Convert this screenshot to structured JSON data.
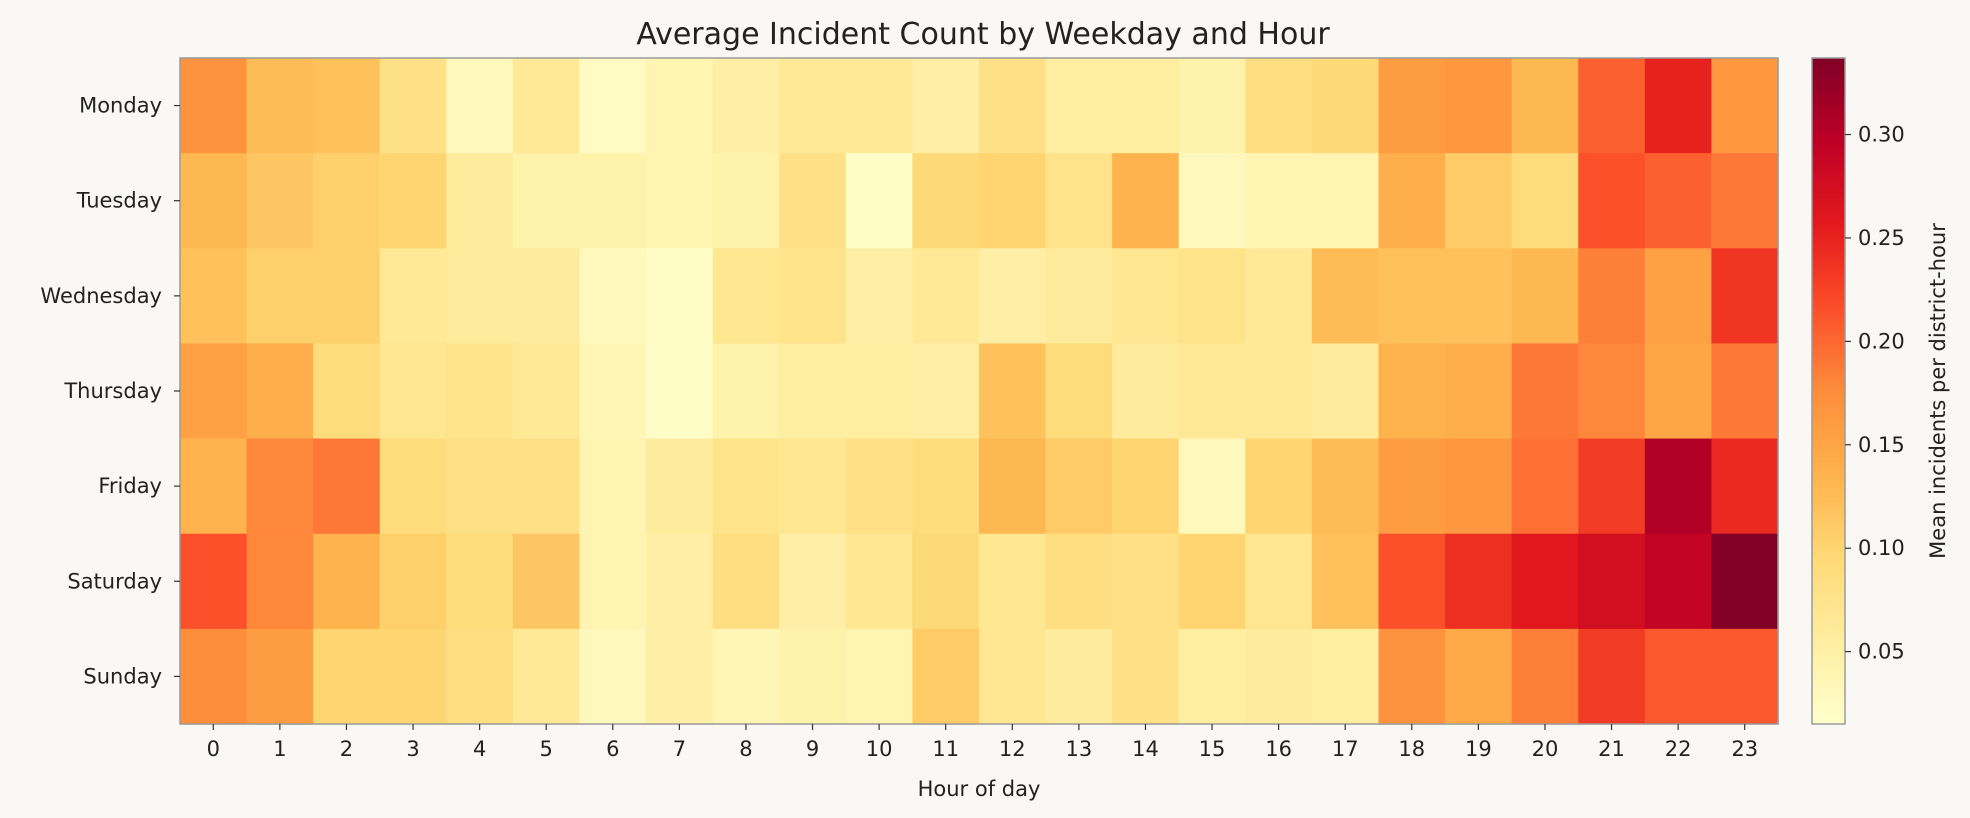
{
  "chart_data": {
    "type": "heatmap",
    "title": "Average Incident Count by Weekday and Hour",
    "xlabel": "Hour of day",
    "ylabel": "",
    "x_categories": [
      "0",
      "1",
      "2",
      "3",
      "4",
      "5",
      "6",
      "7",
      "8",
      "9",
      "10",
      "11",
      "12",
      "13",
      "14",
      "15",
      "16",
      "17",
      "18",
      "19",
      "20",
      "21",
      "22",
      "23"
    ],
    "y_categories": [
      "Monday",
      "Tuesday",
      "Wednesday",
      "Thursday",
      "Friday",
      "Saturday",
      "Sunday"
    ],
    "values": [
      [
        0.17,
        0.125,
        0.12,
        0.08,
        0.03,
        0.065,
        0.025,
        0.04,
        0.05,
        0.065,
        0.065,
        0.05,
        0.08,
        0.055,
        0.055,
        0.045,
        0.085,
        0.095,
        0.16,
        0.165,
        0.13,
        0.205,
        0.25,
        0.165
      ],
      [
        0.13,
        0.115,
        0.105,
        0.1,
        0.06,
        0.045,
        0.045,
        0.04,
        0.045,
        0.08,
        0.02,
        0.095,
        0.1,
        0.075,
        0.135,
        0.03,
        0.04,
        0.04,
        0.14,
        0.11,
        0.09,
        0.215,
        0.205,
        0.19
      ],
      [
        0.12,
        0.105,
        0.105,
        0.065,
        0.06,
        0.06,
        0.03,
        0.02,
        0.07,
        0.075,
        0.05,
        0.065,
        0.05,
        0.06,
        0.07,
        0.075,
        0.065,
        0.125,
        0.12,
        0.12,
        0.13,
        0.185,
        0.155,
        0.235
      ],
      [
        0.155,
        0.14,
        0.09,
        0.07,
        0.075,
        0.065,
        0.035,
        0.02,
        0.045,
        0.055,
        0.055,
        0.05,
        0.12,
        0.09,
        0.06,
        0.065,
        0.065,
        0.06,
        0.135,
        0.14,
        0.19,
        0.18,
        0.15,
        0.19
      ],
      [
        0.135,
        0.18,
        0.19,
        0.09,
        0.08,
        0.08,
        0.04,
        0.06,
        0.075,
        0.07,
        0.08,
        0.09,
        0.13,
        0.11,
        0.1,
        0.03,
        0.1,
        0.125,
        0.16,
        0.165,
        0.195,
        0.23,
        0.305,
        0.245
      ],
      [
        0.215,
        0.18,
        0.135,
        0.105,
        0.09,
        0.115,
        0.04,
        0.05,
        0.085,
        0.05,
        0.07,
        0.095,
        0.07,
        0.085,
        0.08,
        0.1,
        0.07,
        0.12,
        0.215,
        0.24,
        0.26,
        0.275,
        0.29,
        0.335
      ],
      [
        0.175,
        0.16,
        0.1,
        0.1,
        0.085,
        0.065,
        0.03,
        0.05,
        0.035,
        0.045,
        0.04,
        0.11,
        0.07,
        0.06,
        0.08,
        0.055,
        0.06,
        0.055,
        0.17,
        0.145,
        0.185,
        0.23,
        0.21,
        0.21
      ]
    ],
    "colorbar": {
      "label": "Mean incidents per district-hour",
      "ticks": [
        0.05,
        0.1,
        0.15,
        0.2,
        0.25,
        0.3
      ],
      "tick_labels": [
        "0.05",
        "0.10",
        "0.15",
        "0.20",
        "0.25",
        "0.30"
      ],
      "min": 0.015,
      "max": 0.337,
      "colormap": "YlOrRd"
    },
    "grid": false
  }
}
